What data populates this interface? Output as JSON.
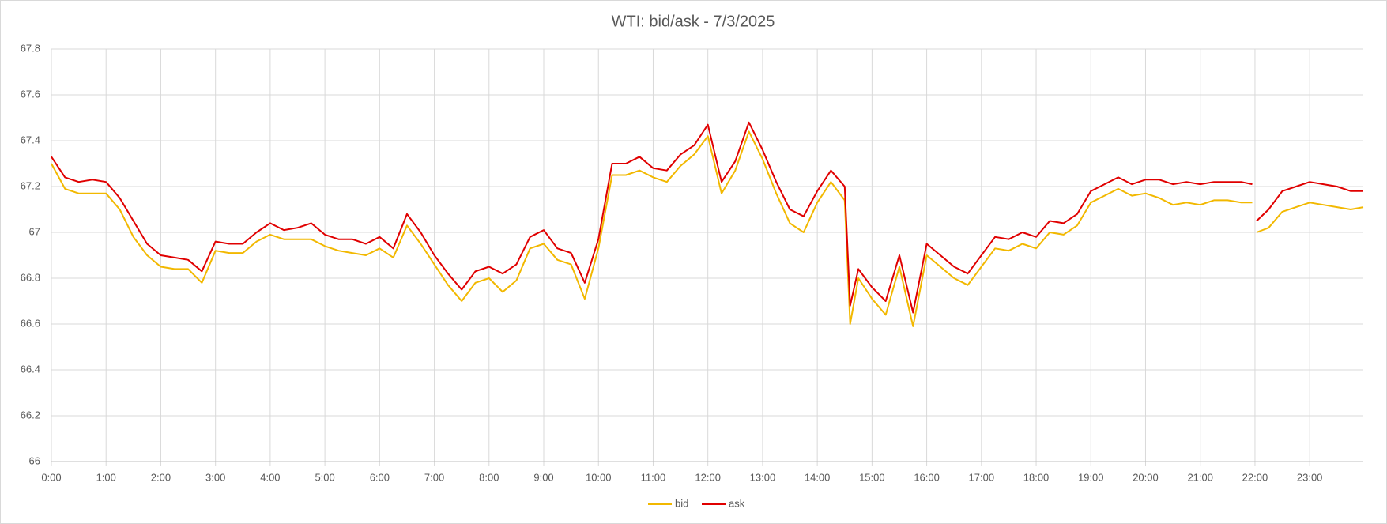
{
  "chart_data": {
    "type": "line",
    "title": "WTI: bid/ask - 7/3/2025",
    "x": [
      0,
      0.25,
      0.5,
      0.75,
      1,
      1.25,
      1.5,
      1.75,
      2,
      2.25,
      2.5,
      2.75,
      3,
      3.25,
      3.5,
      3.75,
      4,
      4.25,
      4.5,
      4.75,
      5,
      5.25,
      5.5,
      5.75,
      6,
      6.25,
      6.5,
      6.75,
      7,
      7.25,
      7.5,
      7.75,
      8,
      8.25,
      8.5,
      8.75,
      9,
      9.25,
      9.5,
      9.75,
      10,
      10.25,
      10.5,
      10.75,
      11,
      11.25,
      11.5,
      11.75,
      12,
      12.25,
      12.5,
      12.75,
      13,
      13.25,
      13.5,
      13.75,
      14,
      14.25,
      14.5,
      14.6,
      14.75,
      15,
      15.25,
      15.5,
      15.75,
      16,
      16.25,
      16.5,
      16.75,
      17,
      17.25,
      17.5,
      17.75,
      18,
      18.25,
      18.5,
      18.75,
      19,
      19.25,
      19.5,
      19.75,
      20,
      20.25,
      20.5,
      20.75,
      21,
      21.25,
      21.5,
      21.75,
      21.95,
      22,
      22.03,
      22.25,
      22.5,
      22.75,
      23,
      23.25,
      23.5,
      23.75,
      23.98
    ],
    "series": [
      {
        "name": "bid",
        "color": "#f2b800",
        "values": [
          67.3,
          67.19,
          67.17,
          67.17,
          67.17,
          67.1,
          66.98,
          66.9,
          66.85,
          66.84,
          66.84,
          66.78,
          66.92,
          66.91,
          66.91,
          66.96,
          66.99,
          66.97,
          66.97,
          66.97,
          66.94,
          66.92,
          66.91,
          66.9,
          66.93,
          66.89,
          67.03,
          66.95,
          66.86,
          66.77,
          66.7,
          66.78,
          66.8,
          66.74,
          66.79,
          66.93,
          66.95,
          66.88,
          66.86,
          66.71,
          66.93,
          67.25,
          67.25,
          67.27,
          67.24,
          67.22,
          67.29,
          67.34,
          67.42,
          67.17,
          67.27,
          67.44,
          67.32,
          67.17,
          67.04,
          67.0,
          67.13,
          67.22,
          67.14,
          66.6,
          66.8,
          66.71,
          66.64,
          66.85,
          66.59,
          66.9,
          66.85,
          66.8,
          66.77,
          66.85,
          66.93,
          66.92,
          66.95,
          66.93,
          67.0,
          66.99,
          67.03,
          67.13,
          67.16,
          67.19,
          67.16,
          67.17,
          67.15,
          67.12,
          67.13,
          67.12,
          67.14,
          67.14,
          67.13,
          67.13,
          null,
          67.0,
          67.02,
          67.09,
          67.11,
          67.13,
          67.12,
          67.11,
          67.1,
          67.11
        ]
      },
      {
        "name": "ask",
        "color": "#e00000",
        "values": [
          67.33,
          67.24,
          67.22,
          67.23,
          67.22,
          67.15,
          67.05,
          66.95,
          66.9,
          66.89,
          66.88,
          66.83,
          66.96,
          66.95,
          66.95,
          67.0,
          67.04,
          67.01,
          67.02,
          67.04,
          66.99,
          66.97,
          66.97,
          66.95,
          66.98,
          66.93,
          67.08,
          67.0,
          66.9,
          66.82,
          66.75,
          66.83,
          66.85,
          66.82,
          66.86,
          66.98,
          67.01,
          66.93,
          66.91,
          66.78,
          66.97,
          67.3,
          67.3,
          67.33,
          67.28,
          67.27,
          67.34,
          67.38,
          67.47,
          67.22,
          67.31,
          67.48,
          67.36,
          67.22,
          67.1,
          67.07,
          67.18,
          67.27,
          67.2,
          66.68,
          66.84,
          66.76,
          66.7,
          66.9,
          66.65,
          66.95,
          66.9,
          66.85,
          66.82,
          66.9,
          66.98,
          66.97,
          67.0,
          66.98,
          67.05,
          67.04,
          67.08,
          67.18,
          67.21,
          67.24,
          67.21,
          67.23,
          67.23,
          67.21,
          67.22,
          67.21,
          67.22,
          67.22,
          67.22,
          67.21,
          null,
          67.05,
          67.1,
          67.18,
          67.2,
          67.22,
          67.21,
          67.2,
          67.18,
          67.18
        ]
      }
    ],
    "xlim": [
      0,
      23.98
    ],
    "xticks": [
      {
        "value": 0,
        "label": "0:00"
      },
      {
        "value": 1,
        "label": "1:00"
      },
      {
        "value": 2,
        "label": "2:00"
      },
      {
        "value": 3,
        "label": "3:00"
      },
      {
        "value": 4,
        "label": "4:00"
      },
      {
        "value": 5,
        "label": "5:00"
      },
      {
        "value": 6,
        "label": "6:00"
      },
      {
        "value": 7,
        "label": "7:00"
      },
      {
        "value": 8,
        "label": "8:00"
      },
      {
        "value": 9,
        "label": "9:00"
      },
      {
        "value": 10,
        "label": "10:00"
      },
      {
        "value": 11,
        "label": "11:00"
      },
      {
        "value": 12,
        "label": "12:00"
      },
      {
        "value": 13,
        "label": "13:00"
      },
      {
        "value": 14,
        "label": "14:00"
      },
      {
        "value": 15,
        "label": "15:00"
      },
      {
        "value": 16,
        "label": "16:00"
      },
      {
        "value": 17,
        "label": "17:00"
      },
      {
        "value": 18,
        "label": "18:00"
      },
      {
        "value": 19,
        "label": "19:00"
      },
      {
        "value": 20,
        "label": "20:00"
      },
      {
        "value": 21,
        "label": "21:00"
      },
      {
        "value": 22,
        "label": "22:00"
      },
      {
        "value": 23,
        "label": "23:00"
      }
    ],
    "ylim": [
      66,
      67.8
    ],
    "yticks": [
      66,
      66.2,
      66.4,
      66.6,
      66.8,
      67,
      67.2,
      67.4,
      67.6,
      67.8
    ],
    "grid": true,
    "legend": "bottom"
  }
}
